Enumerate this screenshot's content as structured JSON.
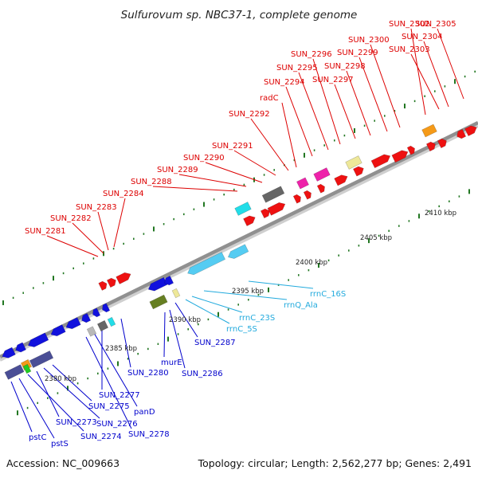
{
  "title": "Sulfurovum sp. NBC37-1, complete genome",
  "footer": {
    "accession": "Accession: NC_009663",
    "topology": "Topology: circular; Length: 2,562,277 bp; Genes: 2,491"
  },
  "colors": {
    "upper_label": "#dd0000",
    "lower_label_blue": "#0000cc",
    "lower_label_cyan": "#22aadd",
    "backbone": "#909090",
    "tick": "#227722"
  },
  "kbp_labels": [
    "2380 kbp",
    "2385 kbp",
    "2390 kbp",
    "2395 kbp",
    "2400 kbp",
    "2405 kbp",
    "2410 kbp"
  ],
  "upper_labels": [
    "SUN_2281",
    "SUN_2282",
    "SUN_2283",
    "SUN_2284",
    "SUN_2288",
    "SUN_2289",
    "SUN_2290",
    "SUN_2291",
    "SUN_2292",
    "radC",
    "SUN_2294",
    "SUN_2295",
    "SUN_2296",
    "SUN_2297",
    "SUN_2298",
    "SUN_2299",
    "SUN_2300",
    "SUN_2302",
    "SUN_2303",
    "SUN_2304",
    "SUN_2305"
  ],
  "lower_labels": [
    "pstC",
    "pstS",
    "SUN_2274",
    "SUN_2273",
    "SUN_2276",
    "SUN_2275",
    "SUN_2278",
    "panD",
    "SUN_2277",
    "SUN_2280",
    "murE",
    "SUN_2286",
    "SUN_2287",
    "rrnC_5S",
    "rrnC_23S",
    "rrnQ_Ala",
    "rrnC_16S"
  ]
}
